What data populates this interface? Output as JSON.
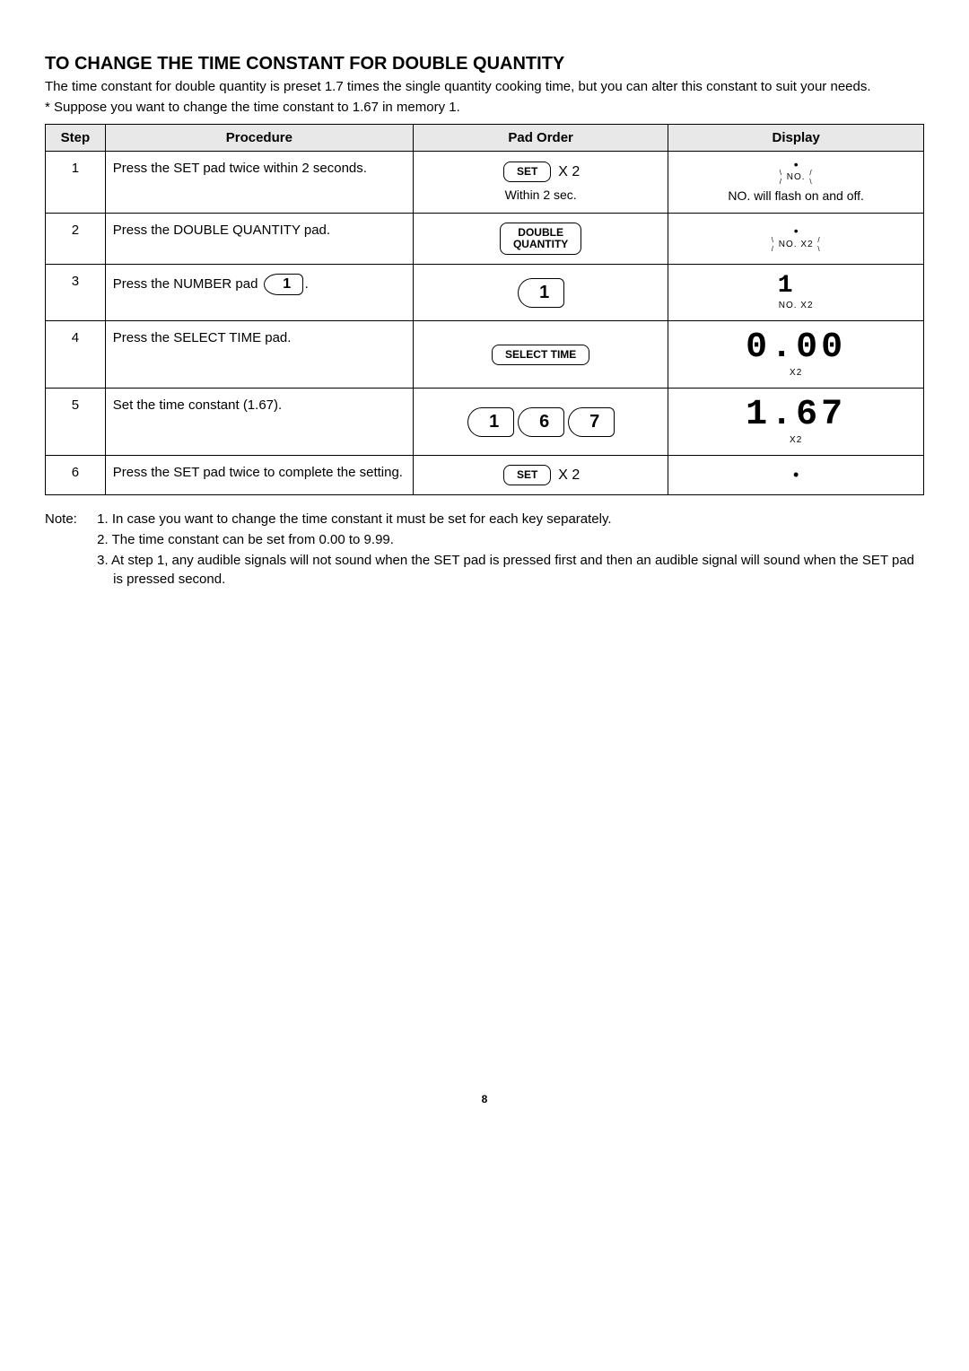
{
  "title": "TO CHANGE THE TIME CONSTANT FOR DOUBLE QUANTITY",
  "intro": "The time constant for double quantity is preset 1.7 times the single quantity cooking time, but you can alter this constant to suit your needs.",
  "example": "* Suppose you want to change the time constant to 1.67 in memory 1.",
  "headers": {
    "step": "Step",
    "procedure": "Procedure",
    "pad": "Pad Order",
    "display": "Display"
  },
  "rows": [
    {
      "step": "1",
      "procedure": "Press the SET pad twice within 2 seconds.",
      "pad": {
        "buttons": [
          {
            "type": "btn",
            "label": "SET"
          }
        ],
        "x2": "X 2",
        "sub": "Within 2 sec."
      },
      "display": {
        "dot": "•",
        "no": "NO.",
        "flash": true,
        "note": "NO. will flash on and off."
      }
    },
    {
      "step": "2",
      "procedure": "Press the DOUBLE QUANTITY pad.",
      "pad": {
        "buttons": [
          {
            "type": "btn",
            "label": "DOUBLE\nQUANTITY"
          }
        ]
      },
      "display": {
        "dot": "•",
        "no": "NO. X2",
        "flash": true
      }
    },
    {
      "step": "3",
      "procedure_prefix": "Press the NUMBER pad ",
      "procedure_suffix": ".",
      "inline_num": "1",
      "pad": {
        "buttons": [
          {
            "type": "num",
            "label": "1"
          }
        ]
      },
      "display": {
        "seg": "1",
        "sub": "NO.  X2",
        "segClass": "seg-small",
        "right": true
      }
    },
    {
      "step": "4",
      "procedure": "Press the SELECT TIME pad.",
      "pad": {
        "buttons": [
          {
            "type": "btn",
            "label": "SELECT  TIME"
          }
        ]
      },
      "display": {
        "seg": "0.00",
        "sub": "X2"
      }
    },
    {
      "step": "5",
      "procedure": "Set the time constant (1.67).",
      "pad": {
        "buttons": [
          {
            "type": "num",
            "label": "1"
          },
          {
            "type": "num",
            "label": "6"
          },
          {
            "type": "num",
            "label": "7"
          }
        ]
      },
      "display": {
        "seg": "1.67",
        "sub": "X2"
      }
    },
    {
      "step": "6",
      "procedure": "Press the SET pad twice to complete the setting.",
      "pad": {
        "buttons": [
          {
            "type": "btn",
            "label": "SET"
          }
        ],
        "x2": "X 2"
      },
      "display": {
        "dot_only": "•"
      }
    }
  ],
  "notes_label": "Note:",
  "notes": [
    "1. In case you want to change the time constant it must be set for each key separately.",
    "2. The time constant can be set from 0.00 to 9.99.",
    "3. At step 1, any audible signals will not sound when the SET pad is pressed first and then an audible signal will sound when the SET pad is pressed second."
  ],
  "page_number": "8",
  "colors": {
    "header_bg": "#e8e8e8",
    "border": "#000000",
    "text": "#000000",
    "bg": "#ffffff"
  }
}
